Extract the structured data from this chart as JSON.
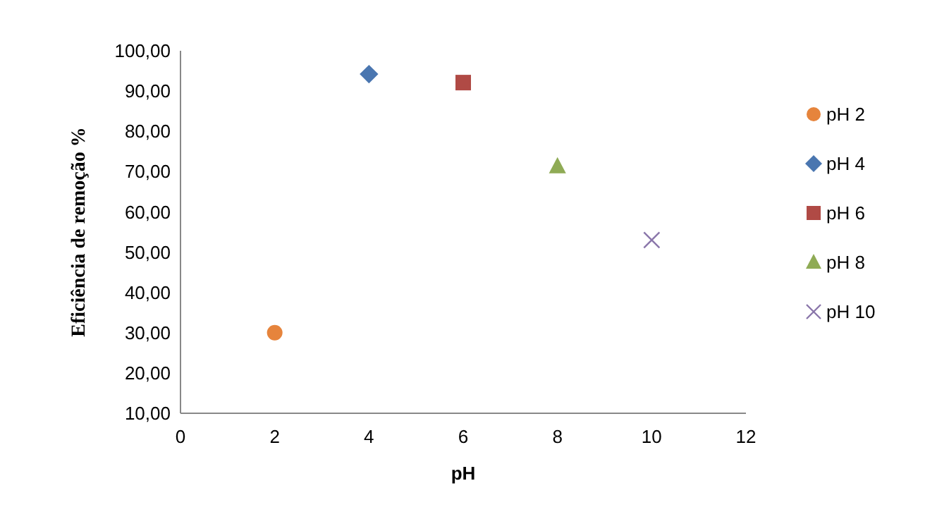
{
  "chart_data": {
    "type": "scatter",
    "xlabel": "pH",
    "ylabel": "Eficiência de remoção %",
    "xlim": [
      0,
      12
    ],
    "xticks": [
      0,
      2,
      4,
      6,
      8,
      10,
      12
    ],
    "ylim": [
      10,
      100
    ],
    "yticks": [
      {
        "value": 10,
        "label": "10,00"
      },
      {
        "value": 20,
        "label": "20,00"
      },
      {
        "value": 30,
        "label": "30,00"
      },
      {
        "value": 40,
        "label": "40,00"
      },
      {
        "value": 50,
        "label": "50,00"
      },
      {
        "value": 60,
        "label": "60,00"
      },
      {
        "value": 70,
        "label": "70,00"
      },
      {
        "value": 80,
        "label": "80,00"
      },
      {
        "value": 90,
        "label": "90,00"
      },
      {
        "value": 100,
        "label": "100,00"
      }
    ],
    "grid": false,
    "legend": "right",
    "series": [
      {
        "name": "pH 2",
        "color": "#e6843c",
        "marker": "circle",
        "x": [
          2
        ],
        "values": [
          30
        ]
      },
      {
        "name": "pH 4",
        "color": "#4a76b0",
        "marker": "diamond",
        "x": [
          4
        ],
        "values": [
          94.2
        ]
      },
      {
        "name": "pH 6",
        "color": "#b04a45",
        "marker": "square",
        "x": [
          6
        ],
        "values": [
          92.1
        ]
      },
      {
        "name": "pH 8",
        "color": "#8fab55",
        "marker": "triangle",
        "x": [
          8
        ],
        "values": [
          71.3
        ]
      },
      {
        "name": "pH 10",
        "color": "#8a76aa",
        "marker": "cross",
        "x": [
          10
        ],
        "values": [
          53
        ]
      }
    ]
  }
}
